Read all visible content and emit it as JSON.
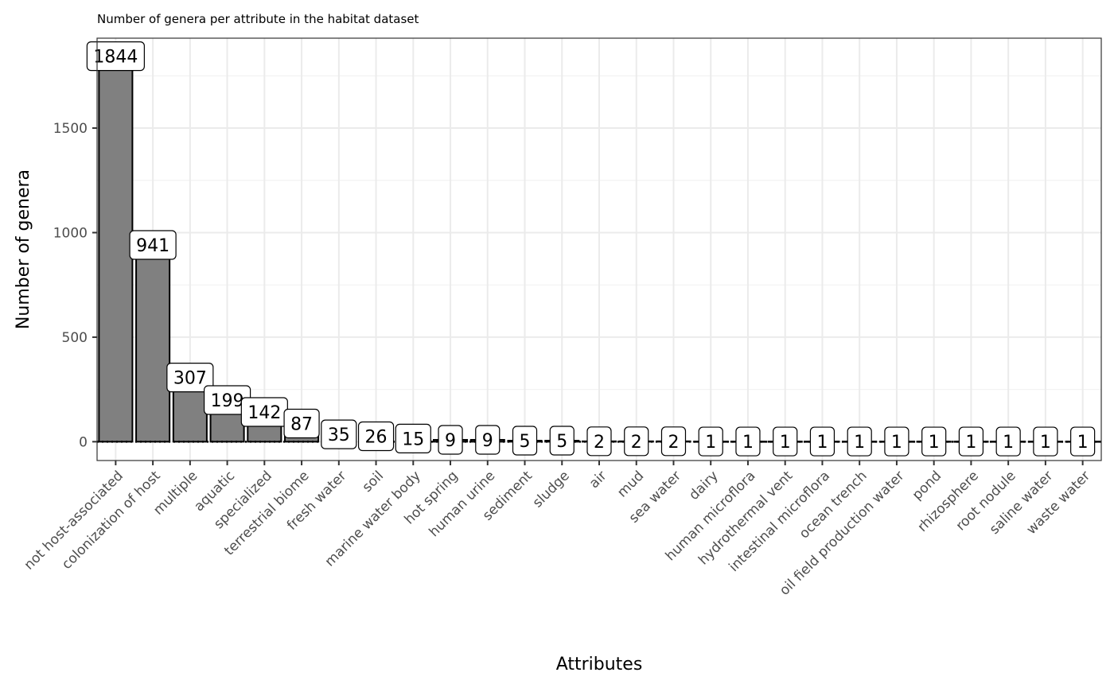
{
  "chart_data": {
    "type": "bar",
    "title": "Number of genera per attribute in the habitat dataset",
    "xlabel": "Attributes",
    "ylabel": "Number of genera",
    "categories": [
      "not host-associated",
      "colonization of host",
      "multiple",
      "aquatic",
      "specialized",
      "terrestrial biome",
      "fresh water",
      "soil",
      "marine water body",
      "hot spring",
      "human urine",
      "sediment",
      "sludge",
      "air",
      "mud",
      "sea water",
      "dairy",
      "human microflora",
      "hydrothermal vent",
      "intestinal microflora",
      "ocean trench",
      "oil field production water",
      "pond",
      "rhizosphere",
      "root nodule",
      "saline water",
      "waste water"
    ],
    "values": [
      1844,
      941,
      307,
      199,
      142,
      87,
      35,
      26,
      15,
      9,
      9,
      5,
      5,
      2,
      2,
      2,
      1,
      1,
      1,
      1,
      1,
      1,
      1,
      1,
      1,
      1,
      1
    ],
    "data_labels": [
      "1844",
      "941",
      "307",
      "199",
      "142",
      "87",
      "35",
      "26",
      "15",
      "9",
      "9",
      "5",
      "5",
      "2",
      "2",
      "2",
      "1",
      "1",
      "1",
      "1",
      "1",
      "1",
      "1",
      "1",
      "1",
      "1",
      "1"
    ],
    "ylim": [
      -90,
      1930
    ],
    "y_ticks": [
      0,
      500,
      1000,
      1500
    ],
    "y_tick_labels": [
      "0",
      "500",
      "1000",
      "1500"
    ],
    "grid": true,
    "bar_fill": "#808080",
    "bar_stroke": "#000000",
    "hline_value": 0
  }
}
